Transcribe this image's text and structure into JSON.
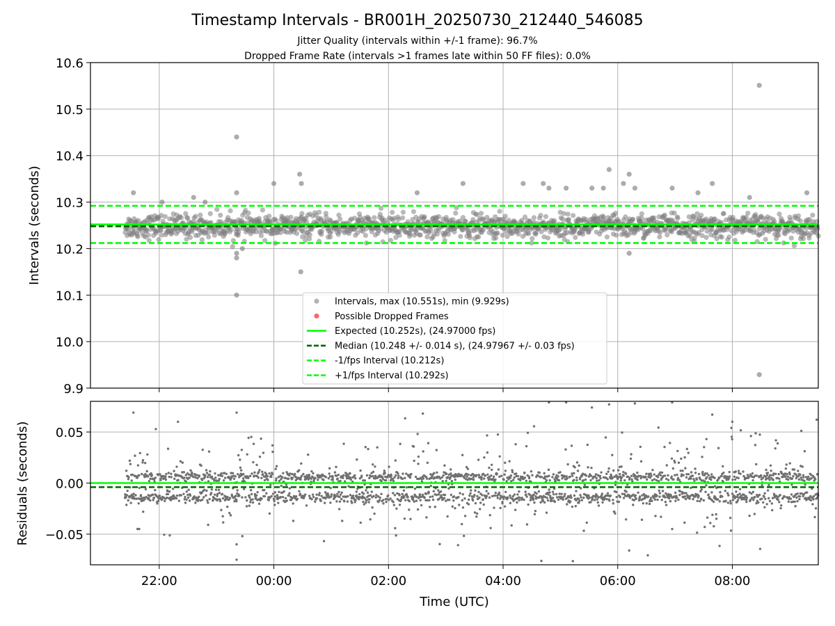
{
  "title": "Timestamp Intervals - BR001H_20250730_212440_546085",
  "subtitle_1": "Jitter Quality (intervals within +/-1 frame): 96.7%",
  "subtitle_2": "Dropped Frame Rate (intervals >1 frames late within 50 FF files): 0.0%",
  "colors": {
    "points": "#808080",
    "dropped": "#ff0000",
    "expected": "#00ff00",
    "median": "#006400",
    "fps_bounds": "#00ff00",
    "grid": "#b0b0b0"
  },
  "chart_data": [
    {
      "type": "scatter",
      "panel": "intervals",
      "ylabel": "Intervals (seconds)",
      "ylim": [
        9.9,
        10.6
      ],
      "yticks": [
        "10.6",
        "10.5",
        "10.4",
        "10.3",
        "10.2",
        "10.1",
        "10.0",
        "9.9"
      ],
      "xlim_hours": [
        -3.2,
        9.5
      ],
      "grid": true,
      "legend_position": "lower center",
      "series": [
        {
          "name": "Intervals, max (10.551s), min (9.929s)",
          "marker": "circle",
          "band": {
            "x_start_hours": -2.6,
            "x_end_hours": 9.5,
            "center": 10.248,
            "spread": 0.014
          },
          "outliers": [
            {
              "x": -2.45,
              "y": 10.32
            },
            {
              "x": -1.95,
              "y": 10.3
            },
            {
              "x": -1.4,
              "y": 10.31
            },
            {
              "x": -1.2,
              "y": 10.3
            },
            {
              "x": -0.65,
              "y": 10.44
            },
            {
              "x": -0.65,
              "y": 10.32
            },
            {
              "x": -0.65,
              "y": 10.19
            },
            {
              "x": -0.65,
              "y": 10.18
            },
            {
              "x": -0.65,
              "y": 10.1
            },
            {
              "x": -0.55,
              "y": 10.2
            },
            {
              "x": 0.0,
              "y": 10.34
            },
            {
              "x": 0.45,
              "y": 10.36
            },
            {
              "x": 0.48,
              "y": 10.34
            },
            {
              "x": 0.47,
              "y": 10.15
            },
            {
              "x": 2.5,
              "y": 10.32
            },
            {
              "x": 3.3,
              "y": 10.34
            },
            {
              "x": 4.35,
              "y": 10.34
            },
            {
              "x": 4.7,
              "y": 10.34
            },
            {
              "x": 4.8,
              "y": 10.33
            },
            {
              "x": 5.1,
              "y": 10.33
            },
            {
              "x": 5.55,
              "y": 10.33
            },
            {
              "x": 5.75,
              "y": 10.33
            },
            {
              "x": 5.85,
              "y": 10.37
            },
            {
              "x": 6.1,
              "y": 10.34
            },
            {
              "x": 6.2,
              "y": 10.36
            },
            {
              "x": 6.3,
              "y": 10.33
            },
            {
              "x": 6.2,
              "y": 10.19
            },
            {
              "x": 6.95,
              "y": 10.33
            },
            {
              "x": 7.4,
              "y": 10.32
            },
            {
              "x": 7.65,
              "y": 10.34
            },
            {
              "x": 8.3,
              "y": 10.31
            },
            {
              "x": 8.47,
              "y": 10.551
            },
            {
              "x": 8.47,
              "y": 9.929
            },
            {
              "x": 9.3,
              "y": 10.32
            }
          ]
        },
        {
          "name": "Possible Dropped Frames",
          "marker": "circle",
          "points": []
        },
        {
          "name": "Expected (10.252s), (24.97000 fps)",
          "line": "solid",
          "y": 10.252
        },
        {
          "name": "Median (10.248 +/- 0.014 s), (24.97967 +/- 0.03 fps)",
          "line": "dashed",
          "y": 10.248
        },
        {
          "name": "-1/fps Interval (10.212s)",
          "line": "dashed",
          "y": 10.212
        },
        {
          "name": "+1/fps Interval (10.292s)",
          "line": "dashed",
          "y": 10.292
        }
      ]
    },
    {
      "type": "scatter",
      "panel": "residuals",
      "ylabel": "Residuals (seconds)",
      "xlabel": "Time (UTC)",
      "ylim": [
        -0.08,
        0.08
      ],
      "yticks": [
        "0.05",
        "0.00",
        "−0.05"
      ],
      "xlim_hours": [
        -3.2,
        9.5
      ],
      "xticks": [
        "22:00",
        "00:00",
        "02:00",
        "04:00",
        "06:00",
        "08:00"
      ],
      "grid": true,
      "series": [
        {
          "name": "Residuals",
          "band": {
            "x_start_hours": -2.6,
            "x_end_hours": 9.5,
            "upper": 0.006,
            "lower": -0.014
          },
          "outliers": [
            {
              "x": -2.45,
              "y": 0.069
            },
            {
              "x": -0.65,
              "y": 0.069
            },
            {
              "x": -0.65,
              "y": -0.06
            },
            {
              "x": -0.55,
              "y": -0.052
            },
            {
              "x": -0.65,
              "y": -0.075
            },
            {
              "x": 2.6,
              "y": 0.068
            },
            {
              "x": 4.8,
              "y": 0.079
            },
            {
              "x": 5.1,
              "y": 0.079
            },
            {
              "x": 5.55,
              "y": 0.074
            },
            {
              "x": 5.85,
              "y": 0.077
            },
            {
              "x": 6.3,
              "y": 0.078
            },
            {
              "x": 6.95,
              "y": 0.079
            },
            {
              "x": 6.2,
              "y": -0.066
            },
            {
              "x": 7.65,
              "y": 0.067
            },
            {
              "x": 8.0,
              "y": 0.06
            },
            {
              "x": 6.95,
              "y": -0.045
            },
            {
              "x": -2.35,
              "y": -0.045
            }
          ]
        },
        {
          "name": "Expected",
          "line": "solid",
          "y": 0.0
        },
        {
          "name": "Median",
          "line": "dashed",
          "y": -0.004
        }
      ]
    }
  ]
}
